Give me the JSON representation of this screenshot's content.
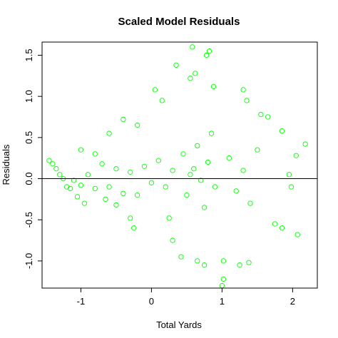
{
  "chart_data": {
    "type": "scatter",
    "title": "Scaled Model Residuals",
    "xlabel": "Total Yards",
    "ylabel": "Residuals",
    "xlim": [
      -1.55,
      2.35
    ],
    "ylim": [
      -1.33,
      1.66
    ],
    "xticks": [
      -1,
      0,
      1,
      2
    ],
    "xtick_labels": [
      "-1",
      "0",
      "1",
      "2"
    ],
    "yticks": [
      -1.0,
      -0.5,
      0.0,
      0.5,
      1.0,
      1.5
    ],
    "ytick_labels": [
      "-1.0",
      "-0.5",
      "0.0",
      "0.5",
      "1.0",
      "1.5"
    ],
    "reference_line_y": 0,
    "grid": false,
    "legend": "none",
    "point_color": "#00ff00",
    "line_color": "#000000",
    "series": [
      {
        "points": [
          [
            0.58,
            1.6
          ],
          [
            0.82,
            1.55
          ],
          [
            0.78,
            1.5
          ],
          [
            0.35,
            1.38
          ],
          [
            0.62,
            1.28
          ],
          [
            0.55,
            1.22
          ],
          [
            0.05,
            1.08
          ],
          [
            0.88,
            1.12
          ],
          [
            1.3,
            1.08
          ],
          [
            1.55,
            0.78
          ],
          [
            1.65,
            0.75
          ],
          [
            1.85,
            0.58
          ],
          [
            2.05,
            0.28
          ],
          [
            2.18,
            0.42
          ],
          [
            1.95,
            0.05
          ],
          [
            -1.0,
            0.35
          ],
          [
            -0.8,
            0.3
          ],
          [
            -0.6,
            0.55
          ],
          [
            -0.4,
            0.72
          ],
          [
            -0.2,
            0.65
          ],
          [
            0.15,
            0.95
          ],
          [
            1.35,
            0.95
          ],
          [
            0.25,
            -0.48
          ],
          [
            0.3,
            -0.75
          ],
          [
            0.42,
            -0.95
          ],
          [
            0.65,
            -1.0
          ],
          [
            0.75,
            -1.05
          ],
          [
            1.02,
            -1.0
          ],
          [
            1.25,
            -1.05
          ],
          [
            1.38,
            -1.02
          ],
          [
            1.02,
            -1.22
          ],
          [
            1.0,
            -1.3
          ],
          [
            1.75,
            -0.55
          ],
          [
            1.85,
            -0.6
          ],
          [
            2.07,
            -0.68
          ],
          [
            1.98,
            -0.1
          ],
          [
            -0.25,
            -0.6
          ],
          [
            -0.3,
            -0.48
          ],
          [
            -0.5,
            -0.32
          ],
          [
            -0.65,
            -0.25
          ],
          [
            0.55,
            0.05
          ],
          [
            0.6,
            0.12
          ],
          [
            0.7,
            -0.02
          ],
          [
            0.8,
            0.2
          ],
          [
            0.9,
            -0.1
          ],
          [
            0.45,
            0.3
          ],
          [
            0.5,
            -0.2
          ],
          [
            0.65,
            0.4
          ],
          [
            0.75,
            -0.35
          ],
          [
            0.85,
            0.55
          ],
          [
            1.1,
            0.25
          ],
          [
            1.2,
            -0.15
          ],
          [
            1.3,
            0.1
          ],
          [
            1.4,
            -0.3
          ],
          [
            1.5,
            0.35
          ],
          [
            0.3,
            0.1
          ],
          [
            0.2,
            -0.1
          ],
          [
            0.1,
            0.22
          ],
          [
            0.0,
            -0.05
          ],
          [
            -0.1,
            0.15
          ],
          [
            -0.2,
            -0.2
          ],
          [
            -0.3,
            0.08
          ],
          [
            -0.4,
            -0.18
          ],
          [
            -0.5,
            0.12
          ],
          [
            -0.6,
            -0.1
          ],
          [
            -0.7,
            0.18
          ],
          [
            -0.8,
            -0.12
          ],
          [
            -0.9,
            0.05
          ],
          [
            -1.0,
            -0.08
          ],
          [
            -1.1,
            -0.02
          ],
          [
            -1.2,
            -0.1
          ],
          [
            -1.3,
            0.05
          ],
          [
            -1.4,
            0.18
          ],
          [
            -1.45,
            0.22
          ],
          [
            -1.35,
            0.12
          ],
          [
            -1.25,
            0.0
          ],
          [
            -1.15,
            -0.12
          ],
          [
            -1.05,
            -0.22
          ],
          [
            -0.95,
            -0.3
          ]
        ]
      }
    ]
  }
}
